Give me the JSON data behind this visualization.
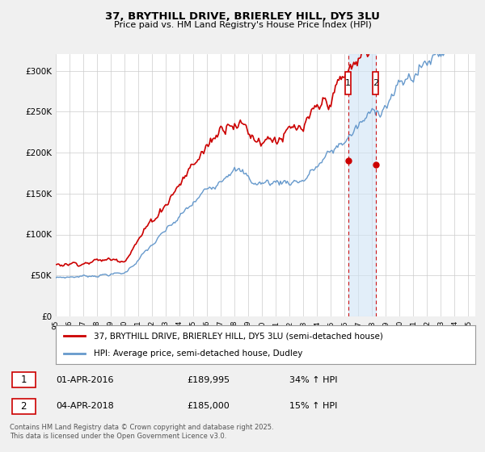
{
  "title": "37, BRYTHILL DRIVE, BRIERLEY HILL, DY5 3LU",
  "subtitle": "Price paid vs. HM Land Registry's House Price Index (HPI)",
  "legend_line1": "37, BRYTHILL DRIVE, BRIERLEY HILL, DY5 3LU (semi-detached house)",
  "legend_line2": "HPI: Average price, semi-detached house, Dudley",
  "footer": "Contains HM Land Registry data © Crown copyright and database right 2025.\nThis data is licensed under the Open Government Licence v3.0.",
  "transaction1_date": "01-APR-2016",
  "transaction1_price": "£189,995",
  "transaction1_hpi": "34% ↑ HPI",
  "transaction1_year": 2016.25,
  "transaction1_value": 189995,
  "transaction2_date": "04-APR-2018",
  "transaction2_price": "£185,000",
  "transaction2_hpi": "15% ↑ HPI",
  "transaction2_year": 2018.25,
  "transaction2_value": 185000,
  "red_color": "#cc0000",
  "blue_color": "#6699cc",
  "shade_color": "#d0e4f5",
  "ylim": [
    0,
    320000
  ],
  "yticks": [
    0,
    50000,
    100000,
    150000,
    200000,
    250000,
    300000
  ],
  "ytick_labels": [
    "£0",
    "£50K",
    "£100K",
    "£150K",
    "£200K",
    "£250K",
    "£300K"
  ],
  "xmin": 1995.0,
  "xmax": 2025.5,
  "bg_color": "#f0f0f0",
  "plot_bg_color": "#ffffff",
  "grid_color": "#cccccc"
}
